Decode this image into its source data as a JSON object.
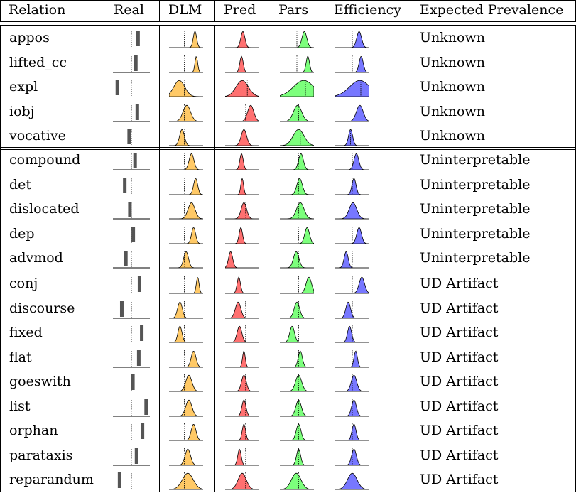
{
  "header": {
    "relation": "Relation",
    "real": "Real",
    "dlm": "DLM",
    "pred": "Pred",
    "pars": "Pars",
    "efficiency": "Efficiency",
    "expected": "Expected Prevalence"
  },
  "colors": {
    "dlm": "#ffc966",
    "pred": "#ff7070",
    "pars": "#7cff7c",
    "efficiency": "#7777ff",
    "bar": "#555555"
  },
  "groups": [
    {
      "rows": [
        {
          "relation": "appos",
          "expected": "Unknown",
          "real": {
            "bar": 0.68,
            "base": false
          },
          "dlm": {
            "mu": 0.76,
            "sd": 0.05,
            "fill": 0.45
          },
          "pred": {
            "mu": 0.52,
            "sd": 0.06,
            "fill": 0.55
          },
          "pars": {
            "mu": 0.72,
            "sd": 0.07,
            "fill": 0.5
          },
          "eff": {
            "mu": 0.7,
            "sd": 0.07,
            "fill": 0.5
          }
        },
        {
          "relation": "lifted_cc",
          "expected": "Unknown",
          "real": {
            "bar": 0.62,
            "base": true
          },
          "dlm": {
            "mu": 0.8,
            "sd": 0.04,
            "fill": 0.45
          },
          "pred": {
            "mu": 0.48,
            "sd": 0.05,
            "fill": 0.55
          },
          "pars": {
            "mu": 0.82,
            "sd": 0.05,
            "fill": 0.5
          },
          "eff": {
            "mu": 0.76,
            "sd": 0.06,
            "fill": 0.5
          }
        },
        {
          "relation": "expl",
          "expected": "Unknown",
          "real": {
            "bar": 0.12,
            "base": false
          },
          "dlm": {
            "mu": 0.3,
            "sd": 0.16,
            "fill": 0.45
          },
          "pred": {
            "mu": 0.5,
            "sd": 0.18,
            "fill": 0.65
          },
          "pars": {
            "mu": 0.7,
            "sd": 0.3,
            "fill": 0.75
          },
          "eff": {
            "mu": 0.72,
            "sd": 0.3,
            "fill": 0.75
          }
        },
        {
          "relation": "iobj",
          "expected": "Unknown",
          "real": {
            "bar": 0.66,
            "base": true
          },
          "dlm": {
            "mu": 0.52,
            "sd": 0.11,
            "fill": 0.45
          },
          "pred": {
            "mu": 0.75,
            "sd": 0.09,
            "fill": 0.6
          },
          "pars": {
            "mu": 0.52,
            "sd": 0.12,
            "fill": 0.55
          },
          "eff": {
            "mu": 0.72,
            "sd": 0.1,
            "fill": 0.55
          }
        },
        {
          "relation": "vocative",
          "expected": "Unknown",
          "real": {
            "bar": 0.44,
            "base": false
          },
          "dlm": {
            "mu": 0.38,
            "sd": 0.07,
            "fill": 0.45
          },
          "pred": {
            "mu": 0.55,
            "sd": 0.08,
            "fill": 0.55
          },
          "pars": {
            "mu": 0.55,
            "sd": 0.16,
            "fill": 0.6
          },
          "eff": {
            "mu": 0.45,
            "sd": 0.06,
            "fill": 0.45
          }
        }
      ]
    },
    {
      "rows": [
        {
          "relation": "compound",
          "expected": "Uninterpretable",
          "real": {
            "bar": 0.6,
            "base": true
          },
          "dlm": {
            "mu": 0.66,
            "sd": 0.07,
            "fill": 0.45
          },
          "pred": {
            "mu": 0.48,
            "sd": 0.05,
            "fill": 0.55
          },
          "pars": {
            "mu": 0.62,
            "sd": 0.07,
            "fill": 0.55
          },
          "eff": {
            "mu": 0.62,
            "sd": 0.07,
            "fill": 0.5
          }
        },
        {
          "relation": "det",
          "expected": "Uninterpretable",
          "real": {
            "bar": 0.32,
            "base": false
          },
          "dlm": {
            "mu": 0.78,
            "sd": 0.06,
            "fill": 0.45
          },
          "pred": {
            "mu": 0.5,
            "sd": 0.04,
            "fill": 0.55
          },
          "pars": {
            "mu": 0.58,
            "sd": 0.08,
            "fill": 0.55
          },
          "eff": {
            "mu": 0.55,
            "sd": 0.06,
            "fill": 0.5
          }
        },
        {
          "relation": "dislocated",
          "expected": "Uninterpretable",
          "real": {
            "bar": 0.46,
            "base": true
          },
          "dlm": {
            "mu": 0.66,
            "sd": 0.1,
            "fill": 0.45
          },
          "pred": {
            "mu": 0.55,
            "sd": 0.08,
            "fill": 0.6
          },
          "pars": {
            "mu": 0.6,
            "sd": 0.11,
            "fill": 0.55
          },
          "eff": {
            "mu": 0.52,
            "sd": 0.11,
            "fill": 0.55
          }
        },
        {
          "relation": "dep",
          "expected": "Uninterpretable",
          "real": {
            "bar": 0.55,
            "base": false
          },
          "dlm": {
            "mu": 0.72,
            "sd": 0.06,
            "fill": 0.45
          },
          "pred": {
            "mu": 0.46,
            "sd": 0.05,
            "fill": 0.55
          },
          "pars": {
            "mu": 0.8,
            "sd": 0.07,
            "fill": 0.55
          },
          "eff": {
            "mu": 0.7,
            "sd": 0.07,
            "fill": 0.5
          }
        },
        {
          "relation": "advmod",
          "expected": "Uninterpretable",
          "real": {
            "bar": 0.35,
            "base": true
          },
          "dlm": {
            "mu": 0.5,
            "sd": 0.07,
            "fill": 0.45
          },
          "pred": {
            "mu": 0.16,
            "sd": 0.06,
            "fill": 0.55
          },
          "pars": {
            "mu": 0.48,
            "sd": 0.08,
            "fill": 0.55
          },
          "eff": {
            "mu": 0.32,
            "sd": 0.06,
            "fill": 0.5
          }
        }
      ]
    },
    {
      "rows": [
        {
          "relation": "conj",
          "expected": "UD Artifact",
          "real": {
            "bar": 0.72,
            "base": false
          },
          "dlm": {
            "mu": 0.84,
            "sd": 0.04,
            "fill": 0.45
          },
          "pred": {
            "mu": 0.4,
            "sd": 0.05,
            "fill": 0.55
          },
          "pars": {
            "mu": 0.85,
            "sd": 0.08,
            "fill": 0.55
          },
          "eff": {
            "mu": 0.78,
            "sd": 0.08,
            "fill": 0.5
          }
        },
        {
          "relation": "discourse",
          "expected": "UD Artifact",
          "real": {
            "bar": 0.24,
            "base": true
          },
          "dlm": {
            "mu": 0.32,
            "sd": 0.07,
            "fill": 0.45
          },
          "pred": {
            "mu": 0.38,
            "sd": 0.08,
            "fill": 0.6
          },
          "pars": {
            "mu": 0.5,
            "sd": 0.08,
            "fill": 0.55
          },
          "eff": {
            "mu": 0.38,
            "sd": 0.07,
            "fill": 0.5
          }
        },
        {
          "relation": "fixed",
          "expected": "UD Artifact",
          "real": {
            "bar": 0.78,
            "base": false
          },
          "dlm": {
            "mu": 0.32,
            "sd": 0.06,
            "fill": 0.45
          },
          "pred": {
            "mu": 0.42,
            "sd": 0.07,
            "fill": 0.6
          },
          "pars": {
            "mu": 0.36,
            "sd": 0.07,
            "fill": 0.55
          },
          "eff": {
            "mu": 0.42,
            "sd": 0.06,
            "fill": 0.5
          }
        },
        {
          "relation": "flat",
          "expected": "UD Artifact",
          "real": {
            "bar": 0.7,
            "base": true
          },
          "dlm": {
            "mu": 0.72,
            "sd": 0.07,
            "fill": 0.45
          },
          "pred": {
            "mu": 0.55,
            "sd": 0.04,
            "fill": 0.55
          },
          "pars": {
            "mu": 0.6,
            "sd": 0.06,
            "fill": 0.55
          },
          "eff": {
            "mu": 0.6,
            "sd": 0.05,
            "fill": 0.5
          }
        },
        {
          "relation": "goeswith",
          "expected": "UD Artifact",
          "real": {
            "bar": 0.54,
            "base": false
          },
          "dlm": {
            "mu": 0.58,
            "sd": 0.09,
            "fill": 0.45
          },
          "pred": {
            "mu": 0.55,
            "sd": 0.07,
            "fill": 0.6
          },
          "pars": {
            "mu": 0.55,
            "sd": 0.09,
            "fill": 0.55
          },
          "eff": {
            "mu": 0.55,
            "sd": 0.08,
            "fill": 0.5
          }
        },
        {
          "relation": "list",
          "expected": "UD Artifact",
          "real": {
            "bar": 0.9,
            "base": true
          },
          "dlm": {
            "mu": 0.58,
            "sd": 0.09,
            "fill": 0.45
          },
          "pred": {
            "mu": 0.55,
            "sd": 0.06,
            "fill": 0.6
          },
          "pars": {
            "mu": 0.55,
            "sd": 0.08,
            "fill": 0.55
          },
          "eff": {
            "mu": 0.55,
            "sd": 0.07,
            "fill": 0.5
          }
        },
        {
          "relation": "orphan",
          "expected": "UD Artifact",
          "real": {
            "bar": 0.8,
            "base": false
          },
          "dlm": {
            "mu": 0.72,
            "sd": 0.07,
            "fill": 0.45
          },
          "pred": {
            "mu": 0.55,
            "sd": 0.05,
            "fill": 0.6
          },
          "pars": {
            "mu": 0.55,
            "sd": 0.07,
            "fill": 0.55
          },
          "eff": {
            "mu": 0.55,
            "sd": 0.06,
            "fill": 0.5
          }
        },
        {
          "relation": "parataxis",
          "expected": "UD Artifact",
          "real": {
            "bar": 0.64,
            "base": true
          },
          "dlm": {
            "mu": 0.55,
            "sd": 0.08,
            "fill": 0.45
          },
          "pred": {
            "mu": 0.42,
            "sd": 0.05,
            "fill": 0.6
          },
          "pars": {
            "mu": 0.55,
            "sd": 0.06,
            "fill": 0.55
          },
          "eff": {
            "mu": 0.55,
            "sd": 0.07,
            "fill": 0.5
          }
        },
        {
          "relation": "reparandum",
          "expected": "UD Artifact",
          "real": {
            "bar": 0.18,
            "base": false
          },
          "dlm": {
            "mu": 0.55,
            "sd": 0.16,
            "fill": 0.45
          },
          "pred": {
            "mu": 0.5,
            "sd": 0.12,
            "fill": 0.6
          },
          "pars": {
            "mu": 0.48,
            "sd": 0.14,
            "fill": 0.55
          },
          "eff": {
            "mu": 0.5,
            "sd": 0.14,
            "fill": 0.55
          }
        }
      ]
    }
  ]
}
